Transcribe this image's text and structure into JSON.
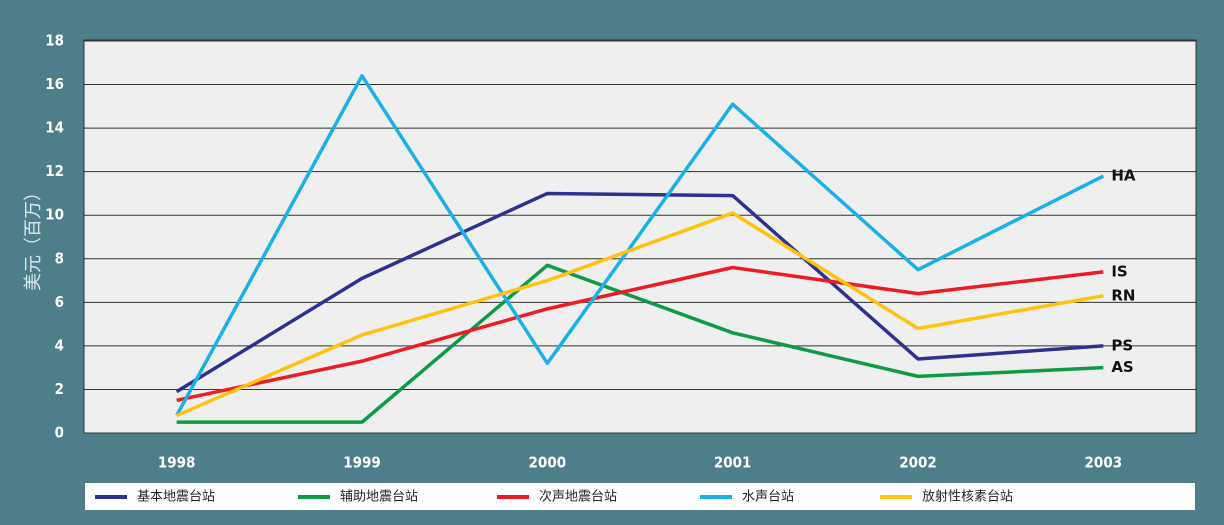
{
  "chart_data": {
    "type": "line",
    "y_label": "美元（百万）",
    "categories": [
      "1998",
      "1999",
      "2000",
      "2001",
      "2002",
      "2003"
    ],
    "series": [
      {
        "name": "基本地震台站",
        "label": "PS",
        "color": "#2e3192",
        "values": [
          1.9,
          7.1,
          11.0,
          10.9,
          3.4,
          4.0
        ]
      },
      {
        "name": "辅助地震台站",
        "label": "AS",
        "color": "#0f9a48",
        "values": [
          0.5,
          0.5,
          7.7,
          4.6,
          2.6,
          3.0
        ]
      },
      {
        "name": "次声地震台站",
        "label": "IS",
        "color": "#ed1c24",
        "values": [
          1.5,
          3.3,
          5.7,
          7.6,
          6.4,
          7.4
        ]
      },
      {
        "name": "水声台站",
        "label": "HA",
        "color": "#1ab0e8",
        "values": [
          0.8,
          16.4,
          3.2,
          15.1,
          7.5,
          11.8
        ]
      },
      {
        "name": "放射性核素台站",
        "label": "RN",
        "color": "#ffc20e",
        "values": [
          0.8,
          4.5,
          7.0,
          10.1,
          4.8,
          6.3
        ]
      }
    ],
    "ylim": [
      0,
      18
    ],
    "yticks": [
      0,
      2,
      4,
      6,
      8,
      10,
      12,
      14,
      16,
      18
    ],
    "grid": true
  }
}
